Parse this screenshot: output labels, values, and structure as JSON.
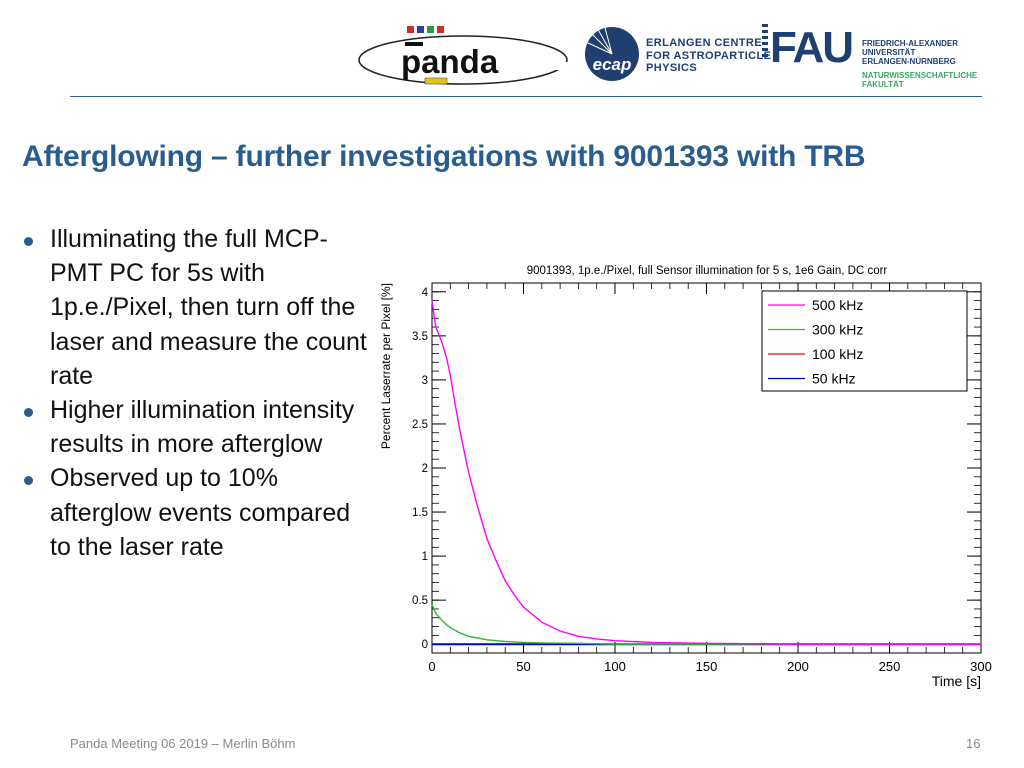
{
  "header": {
    "logos": {
      "panda": "panda",
      "ecap_mark": "ecap",
      "ecap_lines": [
        "ERLANGEN CENTRE",
        "FOR ASTROPARTICLE",
        "PHYSICS"
      ],
      "fau_mark": "FAU",
      "fau_lines": [
        "FRIEDRICH-ALEXANDER",
        "UNIVERSITÄT",
        "ERLANGEN-NÜRNBERG"
      ],
      "fau_faculty": [
        "NATURWISSENSCHAFTLICHE",
        "FAKULTÄT"
      ]
    }
  },
  "slide": {
    "title": "Afterglowing – further investigations with 9001393 with TRB",
    "bullets": [
      "Illuminating the full MCP-PMT PC for 5s with 1p.e./Pixel, then turn off the laser and measure the count rate",
      "Higher illumination intensity results in more afterglow",
      "Observed up to 10% afterglow events compared to the laser rate"
    ]
  },
  "footer": {
    "left": "Panda Meeting 06 2019 – Merlin Böhm",
    "page": "16"
  },
  "colors": {
    "accent": "#2a5d8f",
    "series_500": "#ff00ff",
    "series_300": "#33bb33",
    "series_100": "#ff0000",
    "series_50": "#0000cc"
  },
  "chart_data": {
    "type": "line",
    "title": "9001393, 1p.e./Pixel, full Sensor illumination for 5 s, 1e6 Gain, DC corr",
    "xlabel": "Time [s]",
    "ylabel": "Percent Laserrate per Pixel [%]",
    "xlim": [
      0,
      300
    ],
    "ylim": [
      -0.1,
      4.1
    ],
    "xticks": [
      0,
      50,
      100,
      150,
      200,
      250,
      300
    ],
    "yticks": [
      0,
      0.5,
      1,
      1.5,
      2,
      2.5,
      3,
      3.5,
      4
    ],
    "ytick_labels": [
      "0",
      "0.5",
      "1",
      "1.5",
      "2",
      "2.5",
      "3",
      "3.5",
      "4"
    ],
    "legend_position": "top-right",
    "series": [
      {
        "name": "500 kHz",
        "color": "#ff00ff",
        "x": [
          0,
          2,
          5,
          8,
          10,
          12,
          15,
          18,
          20,
          25,
          30,
          35,
          40,
          45,
          50,
          60,
          70,
          80,
          90,
          100,
          120,
          150,
          200,
          250,
          300
        ],
        "y": [
          3.9,
          3.6,
          3.45,
          3.25,
          3.05,
          2.8,
          2.45,
          2.15,
          1.95,
          1.55,
          1.2,
          0.95,
          0.72,
          0.56,
          0.42,
          0.25,
          0.15,
          0.09,
          0.06,
          0.04,
          0.02,
          0.01,
          0.0,
          0.0,
          0.0
        ]
      },
      {
        "name": "300 kHz",
        "color": "#33bb33",
        "x": [
          0,
          2,
          5,
          8,
          10,
          15,
          20,
          25,
          30,
          40,
          50,
          60,
          80,
          100,
          150,
          200,
          250,
          300
        ],
        "y": [
          0.45,
          0.35,
          0.28,
          0.22,
          0.19,
          0.13,
          0.09,
          0.07,
          0.05,
          0.03,
          0.02,
          0.015,
          0.01,
          0.0,
          0.0,
          0.0,
          0.0,
          0.0
        ]
      },
      {
        "name": "100 kHz",
        "color": "#ff0000",
        "x": [
          0,
          50,
          100,
          150,
          200,
          250,
          300
        ],
        "y": [
          0.0,
          0.0,
          0.0,
          0.0,
          0.0,
          0.0,
          0.0
        ]
      },
      {
        "name": "50 kHz",
        "color": "#0000cc",
        "x": [
          0,
          50,
          100,
          150,
          200,
          250,
          300
        ],
        "y": [
          0.0,
          0.0,
          0.0,
          0.0,
          0.0,
          0.0,
          0.0
        ]
      }
    ]
  }
}
